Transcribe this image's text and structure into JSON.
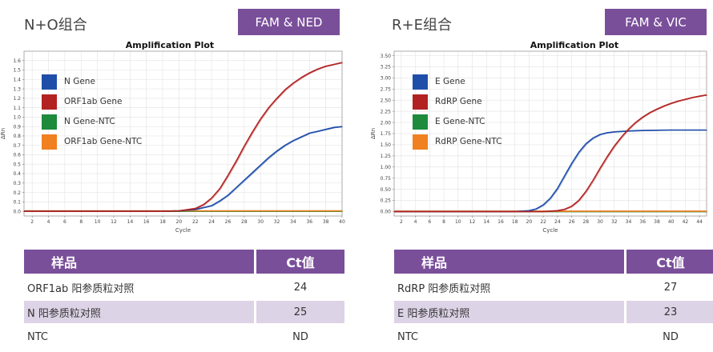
{
  "panels": [
    {
      "title": "N+O组合",
      "badge": "FAM & NED",
      "table": {
        "headers": [
          "样品",
          "Ct值"
        ],
        "rows": [
          [
            "ORF1ab 阳参质粒对照",
            "24"
          ],
          [
            "N 阳参质粒对照",
            "25"
          ],
          [
            "NTC",
            "ND"
          ]
        ]
      }
    },
    {
      "title": "R+E组合",
      "badge": "FAM & VIC",
      "table": {
        "headers": [
          "样品",
          "Ct值"
        ],
        "rows": [
          [
            "RdRP 阳参质粒对照",
            "27"
          ],
          [
            "E 阳参质粒对照",
            "23"
          ],
          [
            "NTC",
            "ND"
          ]
        ]
      }
    }
  ],
  "chart_data": [
    {
      "type": "line",
      "title": "Amplification Plot",
      "xlabel": "Cycle",
      "ylabel": "ΔRn",
      "xlim": [
        1,
        40
      ],
      "ylim": [
        -0.05,
        1.7
      ],
      "x_ticks": [
        2,
        4,
        6,
        8,
        10,
        12,
        14,
        16,
        18,
        20,
        22,
        24,
        26,
        28,
        30,
        32,
        34,
        36,
        38,
        40
      ],
      "y_ticks": [
        0.0,
        0.1,
        0.2,
        0.3,
        0.4,
        0.5,
        0.6,
        0.7,
        0.8,
        0.9,
        1.0,
        1.1,
        1.2,
        1.3,
        1.4,
        1.5,
        1.6
      ],
      "y_decimals": 1,
      "grid": true,
      "legend_position": "top-left",
      "series": [
        {
          "name": "N Gene",
          "color": "#1f4ea8",
          "x": [
            1,
            18,
            20,
            22,
            24,
            25,
            26,
            27,
            28,
            29,
            30,
            31,
            32,
            33,
            34,
            35,
            36,
            37,
            38,
            39,
            40
          ],
          "y": [
            0.0,
            0.0,
            0.005,
            0.02,
            0.06,
            0.11,
            0.17,
            0.25,
            0.33,
            0.41,
            0.49,
            0.57,
            0.64,
            0.7,
            0.75,
            0.79,
            0.83,
            0.85,
            0.87,
            0.89,
            0.9
          ]
        },
        {
          "name": "ORF1ab Gene",
          "color": "#b22222",
          "x": [
            1,
            18,
            20,
            22,
            23,
            24,
            25,
            26,
            27,
            28,
            29,
            30,
            31,
            32,
            33,
            34,
            35,
            36,
            37,
            38,
            39,
            40
          ],
          "y": [
            0.0,
            0.0,
            0.005,
            0.03,
            0.07,
            0.14,
            0.24,
            0.38,
            0.53,
            0.69,
            0.84,
            0.98,
            1.1,
            1.2,
            1.29,
            1.36,
            1.42,
            1.47,
            1.51,
            1.54,
            1.56,
            1.58
          ]
        },
        {
          "name": "N Gene-NTC",
          "color": "#1e8a3c",
          "x": [
            1,
            40
          ],
          "y": [
            0.0,
            0.0
          ]
        },
        {
          "name": "ORF1ab Gene-NTC",
          "color": "#f08020",
          "x": [
            1,
            40
          ],
          "y": [
            0.005,
            0.005
          ]
        }
      ]
    },
    {
      "type": "line",
      "title": "Amplification Plot",
      "xlabel": "Cycle",
      "ylabel": "ΔRn",
      "xlim": [
        1,
        45
      ],
      "ylim": [
        -0.1,
        3.6
      ],
      "x_ticks": [
        2,
        4,
        6,
        8,
        10,
        12,
        14,
        16,
        18,
        20,
        22,
        24,
        26,
        28,
        30,
        32,
        34,
        36,
        38,
        40,
        42,
        44
      ],
      "y_ticks": [
        0.0,
        0.25,
        0.5,
        0.75,
        1.0,
        1.25,
        1.5,
        1.75,
        2.0,
        2.25,
        2.5,
        2.75,
        3.0,
        3.25,
        3.5
      ],
      "y_decimals": 2,
      "grid": true,
      "legend_position": "top-left",
      "series": [
        {
          "name": "E Gene",
          "color": "#1f4ea8",
          "x": [
            1,
            18,
            20,
            21,
            22,
            23,
            24,
            25,
            26,
            27,
            28,
            29,
            30,
            31,
            32,
            34,
            36,
            40,
            45
          ],
          "y": [
            0.0,
            0.0,
            0.02,
            0.06,
            0.15,
            0.3,
            0.52,
            0.8,
            1.08,
            1.33,
            1.52,
            1.65,
            1.73,
            1.77,
            1.79,
            1.81,
            1.82,
            1.83,
            1.83
          ]
        },
        {
          "name": "RdRP Gene",
          "color": "#b22222",
          "x": [
            1,
            22,
            24,
            25,
            26,
            27,
            28,
            29,
            30,
            31,
            32,
            33,
            34,
            35,
            36,
            37,
            38,
            39,
            40,
            41,
            42,
            43,
            44,
            45
          ],
          "y": [
            0.0,
            0.0,
            0.02,
            0.05,
            0.12,
            0.25,
            0.45,
            0.7,
            0.97,
            1.23,
            1.47,
            1.67,
            1.85,
            2.0,
            2.12,
            2.22,
            2.3,
            2.37,
            2.43,
            2.48,
            2.52,
            2.56,
            2.59,
            2.62
          ]
        },
        {
          "name": "E Gene-NTC",
          "color": "#1e8a3c",
          "x": [
            1,
            45
          ],
          "y": [
            0.0,
            0.0
          ]
        },
        {
          "name": "RdRP Gene-NTC",
          "color": "#f08020",
          "x": [
            1,
            45
          ],
          "y": [
            0.01,
            0.01
          ]
        }
      ]
    }
  ]
}
